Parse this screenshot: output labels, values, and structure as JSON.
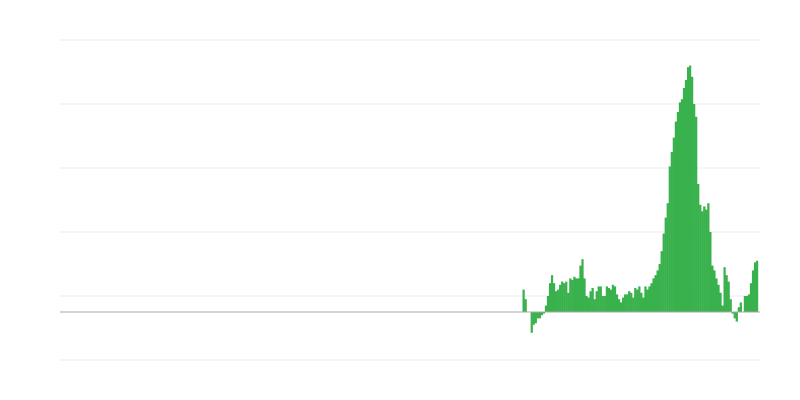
{
  "chart_data": {
    "type": "bar",
    "title": "",
    "xlabel": "",
    "ylabel": "",
    "ylim": [
      -3,
      17
    ],
    "gridlines": [
      -3,
      1,
      5,
      9,
      13,
      17
    ],
    "grid": true,
    "legend": "none",
    "colors": {
      "bar": "#39b14c",
      "grid": "#eeeeee",
      "baseline": "#aaaaaa"
    },
    "values": [
      1.4,
      0.8,
      0,
      0,
      -1.3,
      -0.8,
      -0.7,
      -0.4,
      -0.4,
      -0.2,
      -0.1,
      0.4,
      1.0,
      1.8,
      2.3,
      1.8,
      1.3,
      1.4,
      1.7,
      1.9,
      1.8,
      1.9,
      1.2,
      2.1,
      2.0,
      2.2,
      2.1,
      2.1,
      2.9,
      3.3,
      2.1,
      1.0,
      0.9,
      1.3,
      1.5,
      0.8,
      1.3,
      1.6,
      1.6,
      1.0,
      1.0,
      1.6,
      1.5,
      1.4,
      1.7,
      1.6,
      1.1,
      0.8,
      0.6,
      0.9,
      1.1,
      1.1,
      1.3,
      1.2,
      0.9,
      1.5,
      1.4,
      1.6,
      1.2,
      0.9,
      1.6,
      1.4,
      1.6,
      1.8,
      2.1,
      2.3,
      2.6,
      3.0,
      3.8,
      4.9,
      5.9,
      6.8,
      9.1,
      10.0,
      10.9,
      11.9,
      12.5,
      13.1,
      13.3,
      14.0,
      14.5,
      15.3,
      15.4,
      14.7,
      13.0,
      12.2,
      8.0,
      6.7,
      6.3,
      6.6,
      6.4,
      6.8,
      5.0,
      2.9,
      2.6,
      2.1,
      1.7,
      1.2,
      0.4,
      2.8,
      2.3,
      1.9,
      0.8,
      -0.1,
      -0.4,
      -0.6,
      0.3,
      0.6,
      0,
      1.0,
      1.0,
      1.1,
      1.8,
      2.6,
      3.1,
      3.2
    ]
  }
}
